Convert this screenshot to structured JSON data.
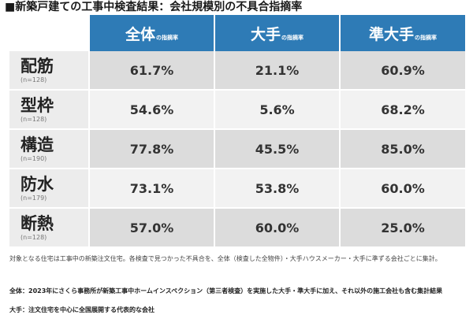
{
  "title": "■新築戸建ての工事中検査結果：会社規模別の不具合指摘率",
  "table": {
    "columns": [
      {
        "main": "全体",
        "sub": "の指摘率"
      },
      {
        "main": "大手",
        "sub": "の指摘率"
      },
      {
        "main": "準大手",
        "sub": "の指摘率"
      }
    ],
    "rows": [
      {
        "name": "配筋",
        "n": "(n=128)",
        "values": [
          "61.7%",
          "21.1%",
          "60.9%"
        ]
      },
      {
        "name": "型枠",
        "n": "(n=128)",
        "values": [
          "54.6%",
          "5.6%",
          "68.2%"
        ]
      },
      {
        "name": "構造",
        "n": "(n=190)",
        "values": [
          "77.8%",
          "45.5%",
          "85.0%"
        ]
      },
      {
        "name": "防水",
        "n": "(n=179)",
        "values": [
          "73.1%",
          "53.8%",
          "60.0%"
        ]
      },
      {
        "name": "断熱",
        "n": "(n=128)",
        "values": [
          "57.0%",
          "60.0%",
          "25.0%"
        ]
      }
    ]
  },
  "note": "対象となる住宅は工事中の新築注文住宅。各検査で見つかった不具合を、全体（検査した全物件）・大手ハウスメーカー・大手に準ずる会社ごとに集計。",
  "definitions": {
    "overall": "全体：2023年にさくら事務所が新築工事中ホームインスペクション（第三者検査）を実施した大手・準大手に加え、それ以外の施工会社も含む集計結果",
    "major": "大手：注文住宅を中心に全国展開する代表的な会社"
  }
}
